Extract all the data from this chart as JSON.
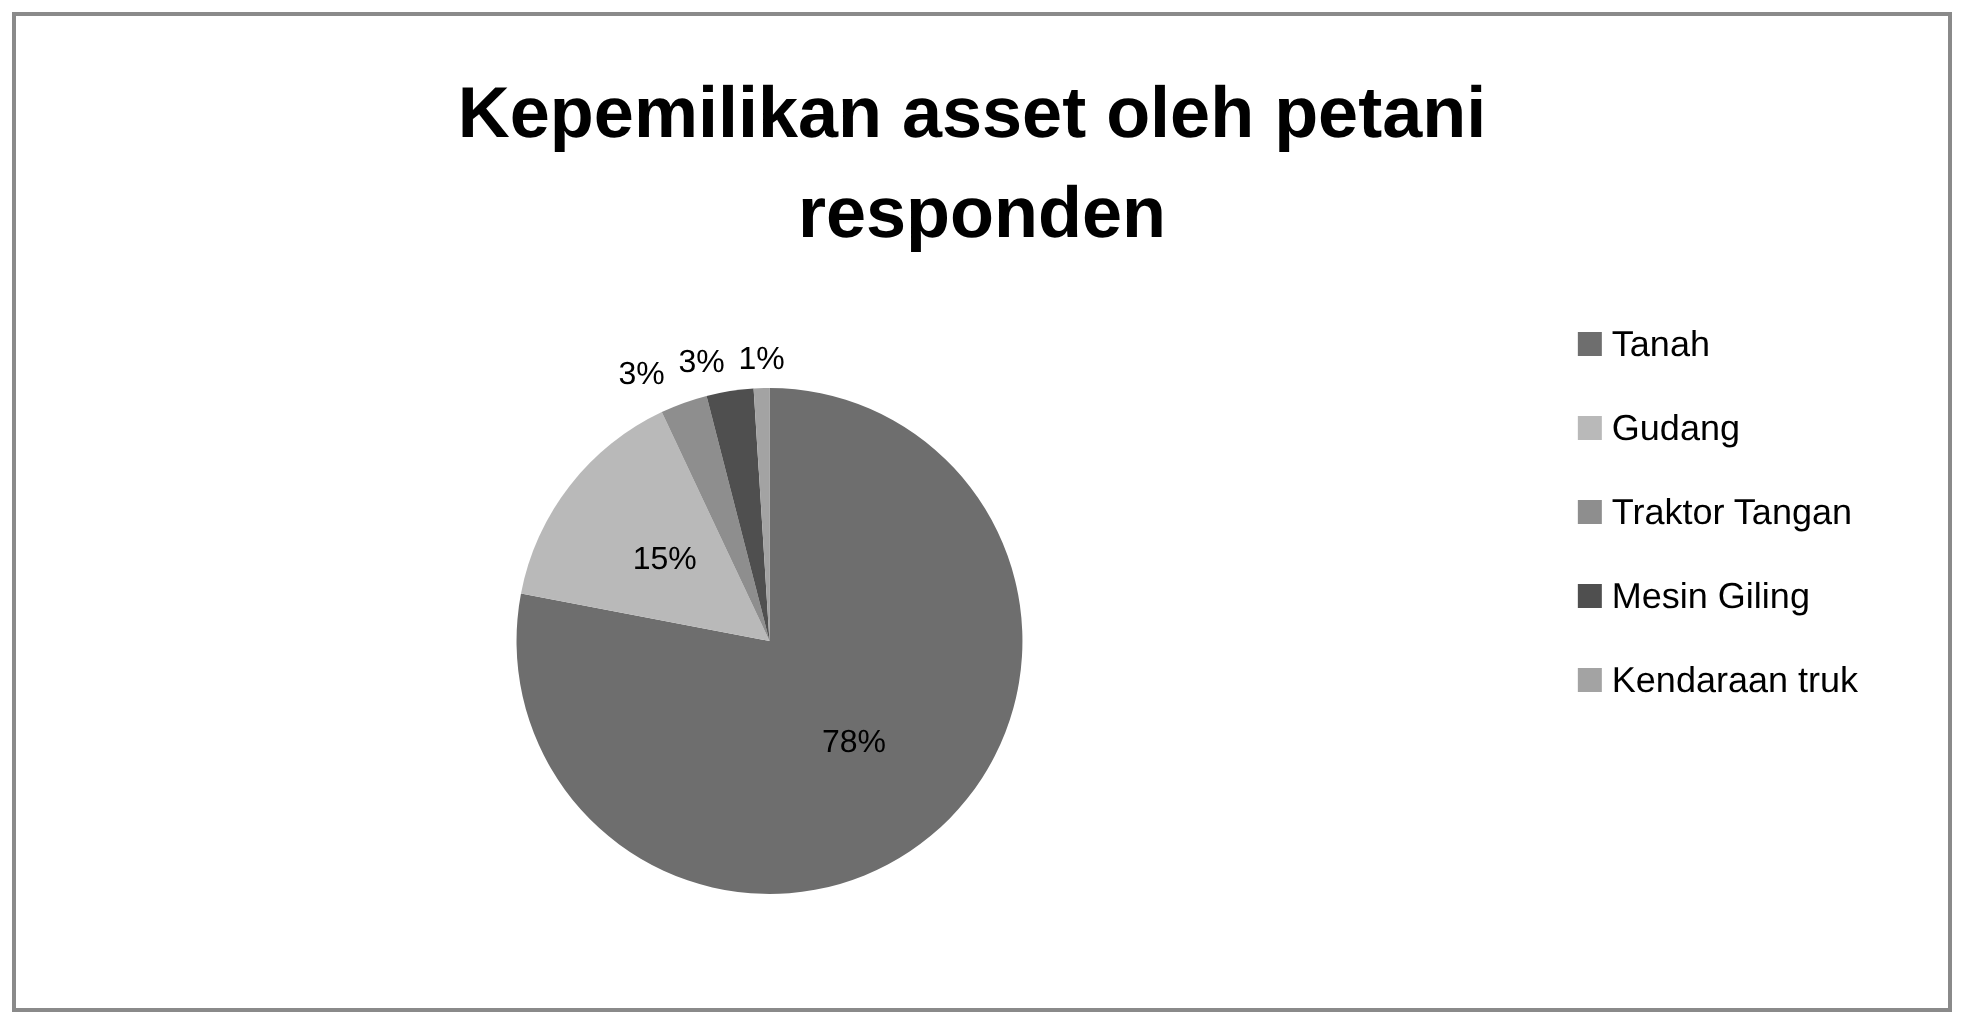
{
  "chart_data": {
    "type": "pie",
    "title": "Kepemilikan asset oleh petani responden",
    "categories": [
      "Tanah",
      "Gudang",
      "Traktor Tangan",
      "Mesin Giling",
      "Kendaraan truk"
    ],
    "values": [
      78,
      15,
      3,
      3,
      1
    ],
    "colors": [
      "#6e6e6e",
      "#b9b9b9",
      "#8e8e8e",
      "#4f4f4f",
      "#a3a3a3"
    ],
    "value_labels": [
      "78%",
      "15%",
      "3%",
      "3%",
      "1%"
    ],
    "legend": "right"
  }
}
